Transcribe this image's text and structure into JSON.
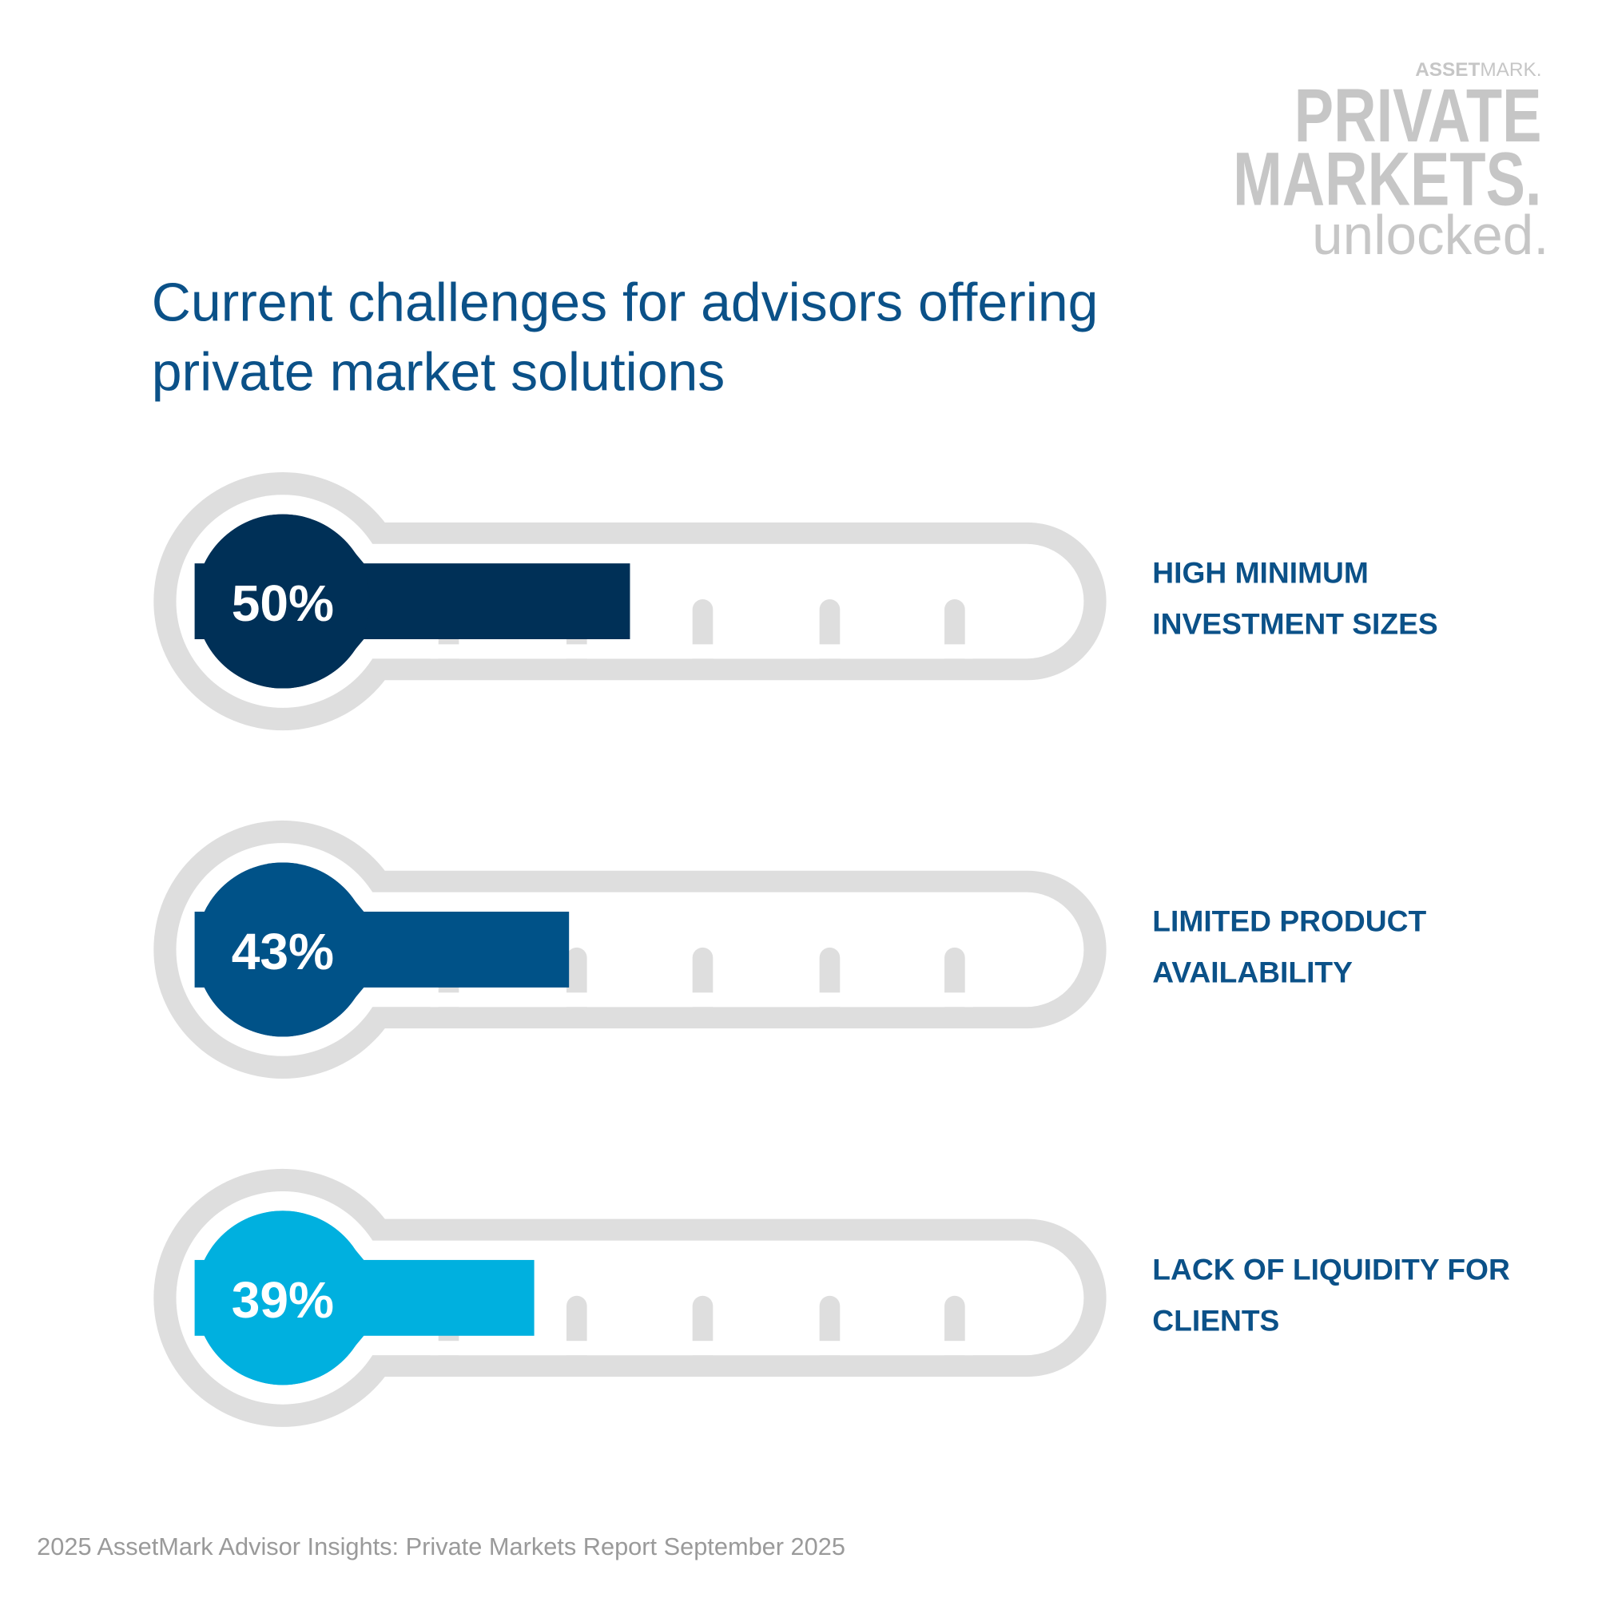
{
  "chart_data": {
    "type": "thermometer",
    "title": "Current challenges for advisors offering private market solutions",
    "categories": [
      "HIGH MINIMUM INVESTMENT SIZES",
      "LIMITED PRODUCT AVAILABILITY",
      "LACK OF LIQUIDITY FOR CLIENTS"
    ],
    "values": [
      50,
      43,
      39
    ],
    "value_labels": [
      "50%",
      "43%",
      "39%"
    ],
    "colors": [
      "#003057",
      "#005288",
      "#00b0df"
    ],
    "xlim": [
      0,
      100
    ]
  },
  "logo": {
    "brand_bold": "ASSET",
    "brand_regular": "MARK.",
    "line1": "PRIVATE",
    "line2": "MARKETS.",
    "line3": "unlocked."
  },
  "footer": "2025 AssetMark Advisor Insights: Private Markets Report September 2025"
}
